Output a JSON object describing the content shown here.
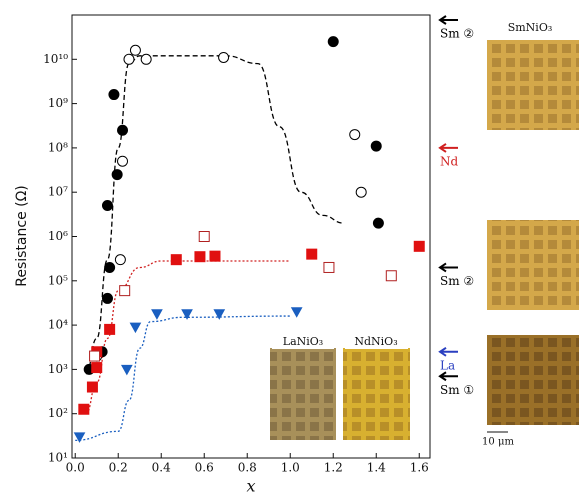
{
  "chart_data": {
    "type": "scatter",
    "y_label": "Resistance (Ω)",
    "x_label": "x",
    "log_y": true,
    "xlim": [
      -0.015,
      1.65
    ],
    "ylim": [
      10,
      100000000000
    ],
    "xticks": [
      {
        "value": 0,
        "label": "0.0"
      },
      0.2,
      0.4,
      0.6,
      0.8,
      {
        "value": 1,
        "label": "1.0"
      },
      1.2,
      1.4,
      1.6
    ],
    "yticks": [
      {
        "value": 10,
        "label": "10¹"
      },
      {
        "value": 100,
        "label": "10²"
      },
      {
        "value": 1000,
        "label": "10³"
      },
      {
        "value": 10000,
        "label": "10⁴"
      },
      {
        "value": 100000,
        "label": "10⁵"
      },
      {
        "value": 1000000,
        "label": "10⁶"
      },
      {
        "value": 10000000,
        "label": "10⁷"
      },
      {
        "value": 100000000,
        "label": "10⁸"
      },
      {
        "value": 1000000000,
        "label": "10⁹"
      },
      {
        "value": 10000000000,
        "label": "10¹⁰"
      }
    ],
    "series": [
      {
        "marker": "circle",
        "filled": true,
        "color": "#000000",
        "x": [
          0.065,
          0.125,
          0.15,
          0.16,
          0.15,
          0.195,
          0.18,
          0.22,
          1.2,
          1.4,
          1.41
        ],
        "values": [
          1000,
          2500,
          40000,
          200000,
          5000000,
          25000000,
          1600000000,
          250000000,
          25000000000,
          110000000,
          2000000
        ]
      },
      {
        "marker": "circle",
        "filled": false,
        "color": "#000000",
        "x": [
          0.28,
          0.25,
          0.33,
          0.69,
          1.3,
          1.33,
          0.21,
          0.22,
          0.1
        ],
        "values": [
          16000000000,
          10000000000,
          10000000000,
          11000000000,
          200000000,
          10000000,
          300000,
          50000000,
          2000
        ]
      },
      {
        "marker": "square",
        "filled": true,
        "color": "#e01010",
        "x": [
          0.04,
          0.08,
          0.1,
          0.1,
          0.16,
          0.47,
          0.58,
          0.65,
          1.1,
          1.6
        ],
        "values": [
          126,
          400,
          1100,
          2500,
          8000,
          300000,
          350000,
          360000,
          400000,
          600000
        ]
      },
      {
        "marker": "square",
        "filled": false,
        "color": "#b02020",
        "x": [
          0.09,
          0.23,
          0.6,
          1.18,
          1.47
        ],
        "values": [
          2000,
          60000,
          1000000,
          200000,
          130000
        ]
      },
      {
        "marker": "triangle",
        "filled": true,
        "color": "#1a5fc0",
        "x": [
          0.02,
          0.28,
          0.38,
          0.52,
          0.67,
          1.03,
          0.24
        ],
        "values": [
          30,
          9000,
          18000,
          18000,
          18000,
          20000,
          1000
        ]
      }
    ],
    "fits": [
      {
        "color": "#000000",
        "dash": "5,3",
        "x": [
          0.05,
          0.1,
          0.15,
          0.2,
          0.25,
          0.3,
          0.7,
          0.85,
          0.95,
          1.05,
          1.15,
          1.25
        ],
        "values": [
          800,
          5000,
          300000,
          100000000,
          8000000000,
          12000000000,
          12000000000,
          8000000000,
          300000000,
          10000000,
          3000000,
          2000000
        ]
      },
      {
        "color": "#d02020",
        "dash": "2,2",
        "x": [
          0.05,
          0.1,
          0.15,
          0.2,
          0.3,
          0.4,
          1.0
        ],
        "values": [
          100,
          500,
          5000,
          60000,
          200000,
          280000,
          280000
        ]
      },
      {
        "color": "#1a5fc0",
        "dash": "2,2",
        "x": [
          0.0,
          0.2,
          0.25,
          0.3,
          0.35,
          0.5,
          1.0
        ],
        "values": [
          25,
          40,
          200,
          3000,
          12000,
          15000,
          16000
        ]
      }
    ],
    "annotations": [
      {
        "text": "Sm ②",
        "value": 100000000000,
        "color": "#000000"
      },
      {
        "text": "Nd",
        "value": 100000000,
        "color": "#d02020"
      },
      {
        "text": "Sm ②",
        "value": 200000,
        "color": "#000000"
      },
      {
        "text": "La",
        "value": 2500,
        "color": "#2a3fc0"
      },
      {
        "text": "Sm ①",
        "value": 700,
        "color": "#000000"
      }
    ],
    "insets": {
      "la": "LaNiO₃",
      "nd": "NdNiO₃",
      "sm": "SmNiO₃",
      "scale": "10 μm"
    }
  }
}
